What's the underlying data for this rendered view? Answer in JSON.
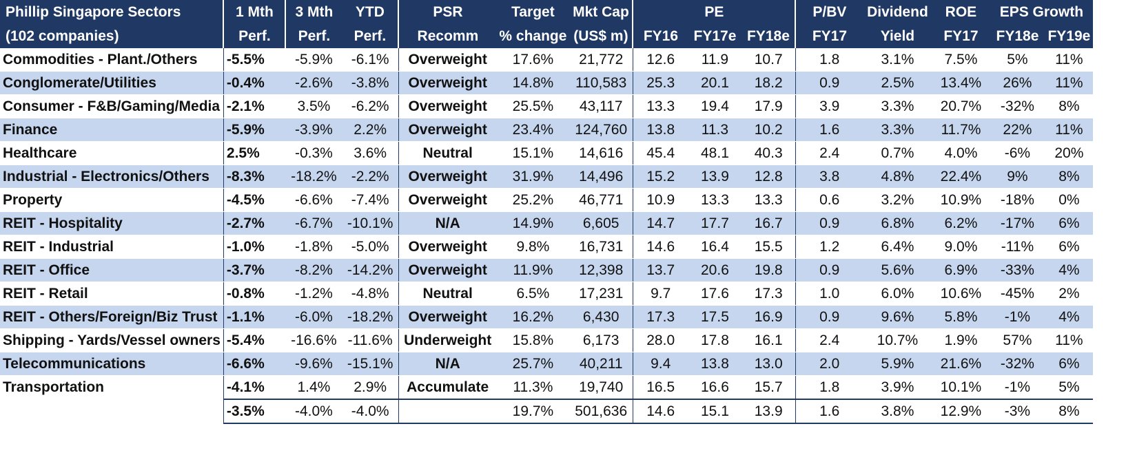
{
  "header": {
    "row1": [
      "Phillip Singapore Sectors",
      "1 Mth",
      "3 Mth",
      "YTD",
      "PSR",
      "Target",
      "Mkt Cap",
      "PE",
      "P/BV",
      "Dividend",
      "ROE",
      "EPS Growth"
    ],
    "row2": [
      "(102 companies)",
      "Perf.",
      "Perf.",
      "Perf.",
      "Recomm",
      "% change",
      "(US$ m)",
      "FY16",
      "FY17e",
      "FY18e",
      "FY17",
      "Yield",
      "FY17",
      "FY18e",
      "FY19e"
    ]
  },
  "rows": [
    [
      "Commodities - Plant./Others",
      "-5.5%",
      "-5.9%",
      "-6.1%",
      "Overweight",
      "17.6%",
      "21,772",
      "12.6",
      "11.9",
      "10.7",
      "1.8",
      "3.1%",
      "7.5%",
      "5%",
      "11%"
    ],
    [
      "Conglomerate/Utilities",
      "-0.4%",
      "-2.6%",
      "-3.8%",
      "Overweight",
      "14.8%",
      "110,583",
      "25.3",
      "20.1",
      "18.2",
      "0.9",
      "2.5%",
      "13.4%",
      "26%",
      "11%"
    ],
    [
      "Consumer - F&B/Gaming/Media",
      "-2.1%",
      "3.5%",
      "-6.2%",
      "Overweight",
      "25.5%",
      "43,117",
      "13.3",
      "19.4",
      "17.9",
      "3.9",
      "3.3%",
      "20.7%",
      "-32%",
      "8%"
    ],
    [
      "Finance",
      "-5.9%",
      "-3.9%",
      "2.2%",
      "Overweight",
      "23.4%",
      "124,760",
      "13.8",
      "11.3",
      "10.2",
      "1.6",
      "3.3%",
      "11.7%",
      "22%",
      "11%"
    ],
    [
      "Healthcare",
      "2.5%",
      "-0.3%",
      "3.6%",
      "Neutral",
      "15.1%",
      "14,616",
      "45.4",
      "48.1",
      "40.3",
      "2.4",
      "0.7%",
      "4.0%",
      "-6%",
      "20%"
    ],
    [
      "Industrial - Electronics/Others",
      "-8.3%",
      "-18.2%",
      "-2.2%",
      "Overweight",
      "31.9%",
      "14,496",
      "15.2",
      "13.9",
      "12.8",
      "3.8",
      "4.8%",
      "22.4%",
      "9%",
      "8%"
    ],
    [
      "Property",
      "-4.5%",
      "-6.6%",
      "-7.4%",
      "Overweight",
      "25.2%",
      "46,771",
      "10.9",
      "13.3",
      "13.3",
      "0.6",
      "3.2%",
      "10.9%",
      "-18%",
      "0%"
    ],
    [
      "REIT - Hospitality",
      "-2.7%",
      "-6.7%",
      "-10.1%",
      "N/A",
      "14.9%",
      "6,605",
      "14.7",
      "17.7",
      "16.7",
      "0.9",
      "6.8%",
      "6.2%",
      "-17%",
      "6%"
    ],
    [
      "REIT - Industrial",
      "-1.0%",
      "-1.8%",
      "-5.0%",
      "Overweight",
      "9.8%",
      "16,731",
      "14.6",
      "16.4",
      "15.5",
      "1.2",
      "6.4%",
      "9.0%",
      "-11%",
      "6%"
    ],
    [
      "REIT - Office",
      "-3.7%",
      "-8.2%",
      "-14.2%",
      "Overweight",
      "11.9%",
      "12,398",
      "13.7",
      "20.6",
      "19.8",
      "0.9",
      "5.6%",
      "6.9%",
      "-33%",
      "4%"
    ],
    [
      "REIT - Retail",
      "-0.8%",
      "-1.2%",
      "-4.8%",
      "Neutral",
      "6.5%",
      "17,231",
      "9.7",
      "17.6",
      "17.3",
      "1.0",
      "6.0%",
      "10.6%",
      "-45%",
      "2%"
    ],
    [
      "REIT - Others/Foreign/Biz Trust",
      "-1.1%",
      "-6.0%",
      "-18.2%",
      "Overweight",
      "16.2%",
      "6,430",
      "17.3",
      "17.5",
      "16.9",
      "0.9",
      "9.6%",
      "5.8%",
      "-1%",
      "4%"
    ],
    [
      "Shipping - Yards/Vessel owners",
      "-5.4%",
      "-16.6%",
      "-11.6%",
      "Underweight",
      "15.8%",
      "6,173",
      "28.0",
      "17.8",
      "16.1",
      "2.4",
      "10.7%",
      "1.9%",
      "57%",
      "11%"
    ],
    [
      "Telecommunications",
      "-6.6%",
      "-9.6%",
      "-15.1%",
      "N/A",
      "25.7%",
      "40,211",
      "9.4",
      "13.8",
      "13.0",
      "2.0",
      "5.9%",
      "21.6%",
      "-32%",
      "6%"
    ],
    [
      "Transportation",
      "-4.1%",
      "1.4%",
      "2.9%",
      "Accumulate",
      "11.3%",
      "19,740",
      "16.5",
      "16.6",
      "15.7",
      "1.8",
      "3.9%",
      "10.1%",
      "-1%",
      "5%"
    ]
  ],
  "total": [
    "",
    "-3.5%",
    "-4.0%",
    "-4.0%",
    "",
    "19.7%",
    "501,636",
    "14.6",
    "15.1",
    "13.9",
    "1.6",
    "3.8%",
    "12.9%",
    "-3%",
    "8%"
  ],
  "colors": {
    "header_bg": "#1f3864",
    "header_text": "#ffffff",
    "alt_row": "#c6d6ee",
    "text": "#111111"
  }
}
